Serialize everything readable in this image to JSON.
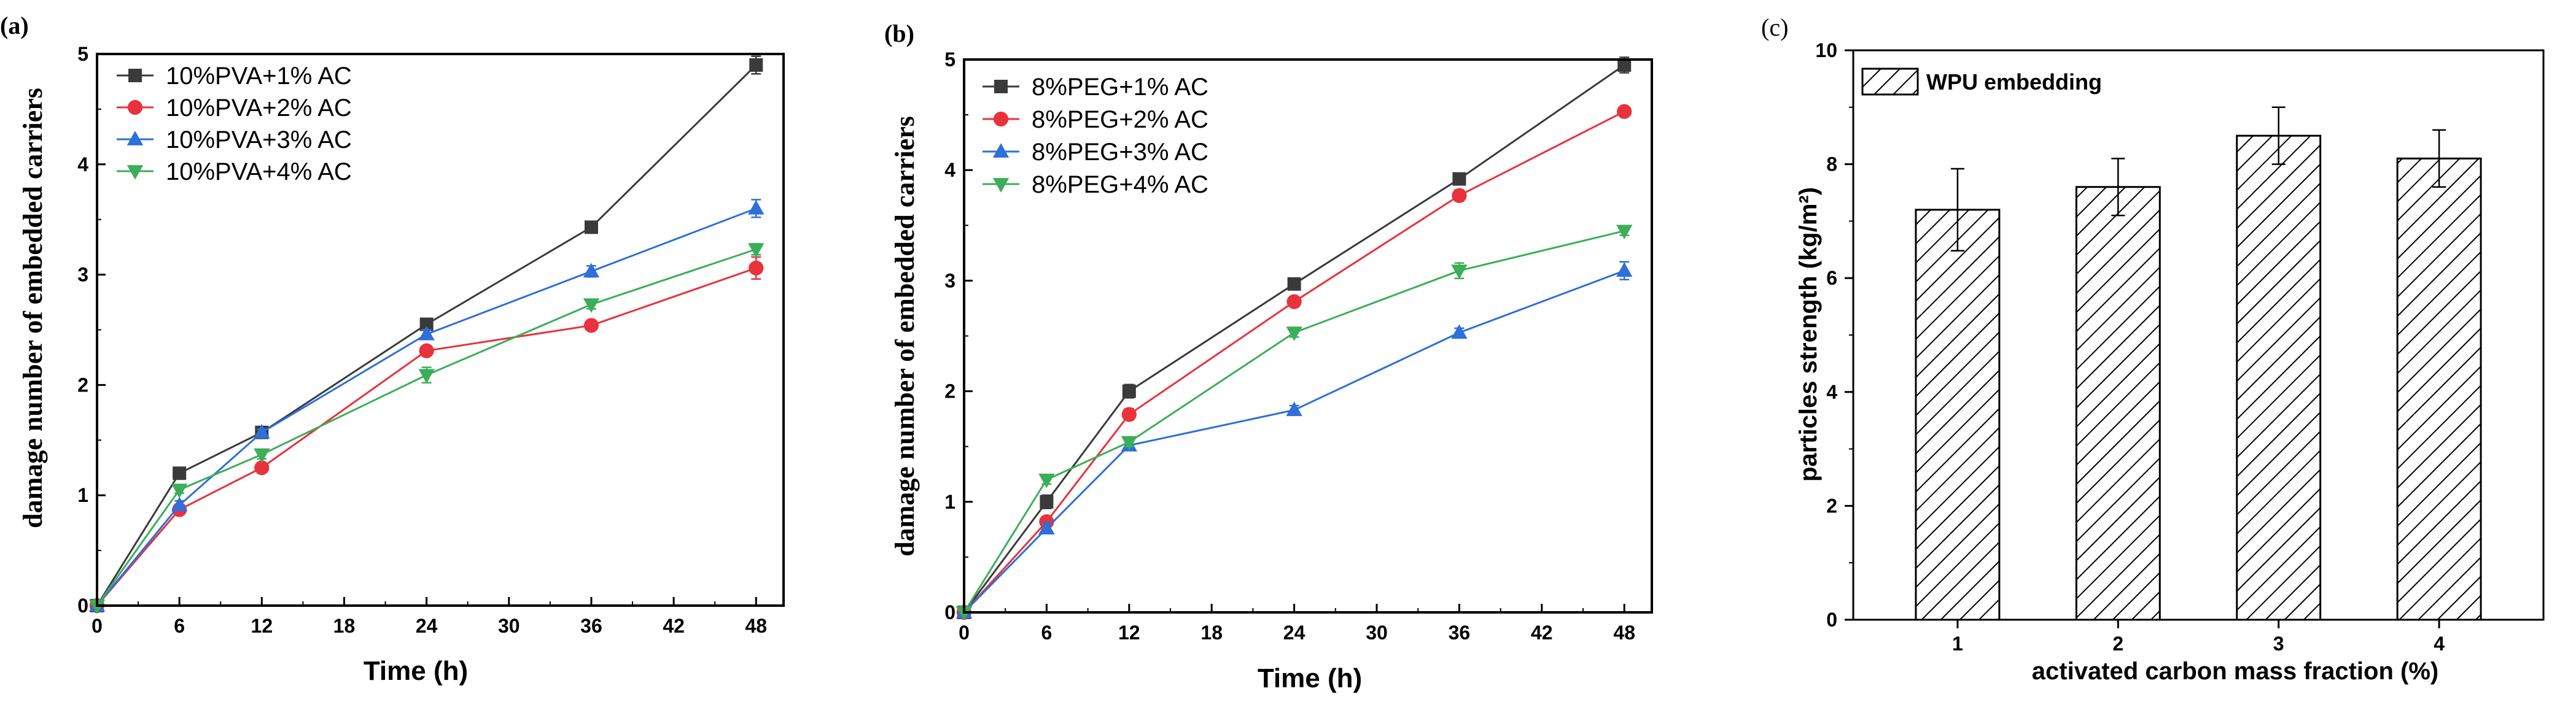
{
  "chart_data": [
    {
      "panel_label": "(a)",
      "type": "line",
      "xlabel": "Time (h)",
      "ylabel": "damage number of embedded carriers",
      "xlim": [
        0,
        50
      ],
      "ylim": [
        0,
        5
      ],
      "xticks": [
        0,
        6,
        12,
        18,
        24,
        30,
        36,
        42,
        48
      ],
      "yticks": [
        0,
        1,
        2,
        3,
        4,
        5
      ],
      "grid": false,
      "legend_position": "top-left",
      "x": [
        0,
        6,
        12,
        24,
        36,
        48
      ],
      "series": [
        {
          "name": "10%PVA+1% AC",
          "color": "#3a3a3a",
          "marker": "square",
          "values": [
            0,
            1.2,
            1.57,
            2.55,
            3.43,
            4.9
          ],
          "errors": [
            0,
            0.03,
            0.03,
            0.04,
            0.04,
            0.08
          ]
        },
        {
          "name": "10%PVA+2% AC",
          "color": "#e8323c",
          "marker": "circle",
          "values": [
            0,
            0.87,
            1.25,
            2.31,
            2.54,
            3.06
          ],
          "errors": [
            0,
            0.03,
            0.04,
            0.04,
            0.04,
            0.1
          ]
        },
        {
          "name": "10%PVA+3% AC",
          "color": "#2e6fd8",
          "marker": "triangle-up",
          "values": [
            0,
            0.91,
            1.57,
            2.46,
            3.03,
            3.6
          ],
          "errors": [
            0,
            0.04,
            0.03,
            0.04,
            0.05,
            0.08
          ]
        },
        {
          "name": "10%PVA+4% AC",
          "color": "#3cae5a",
          "marker": "triangle-down",
          "values": [
            0,
            1.05,
            1.37,
            2.09,
            2.73,
            3.23
          ],
          "errors": [
            0,
            0.03,
            0.04,
            0.07,
            0.04,
            0.05
          ]
        }
      ]
    },
    {
      "panel_label": "(b)",
      "type": "line",
      "xlabel": "Time (h)",
      "ylabel": "damage number of embedded carriers",
      "xlim": [
        0,
        50
      ],
      "ylim": [
        0,
        5
      ],
      "xticks": [
        0,
        6,
        12,
        18,
        24,
        30,
        36,
        42,
        48
      ],
      "yticks": [
        0,
        1,
        2,
        3,
        4,
        5
      ],
      "grid": false,
      "legend_position": "top-left",
      "x": [
        0,
        6,
        12,
        24,
        36,
        48
      ],
      "series": [
        {
          "name": "8%PEG+1% AC",
          "color": "#3a3a3a",
          "marker": "square",
          "values": [
            0,
            1.0,
            2.0,
            2.97,
            3.92,
            4.95
          ],
          "errors": [
            0,
            0.06,
            0.06,
            0.04,
            0.04,
            0.07
          ]
        },
        {
          "name": "8%PEG+2% AC",
          "color": "#e8323c",
          "marker": "circle",
          "values": [
            0,
            0.82,
            1.79,
            2.81,
            3.77,
            4.53
          ],
          "errors": [
            0,
            0.04,
            0.05,
            0.04,
            0.05,
            0.04
          ]
        },
        {
          "name": "8%PEG+3% AC",
          "color": "#2e6fd8",
          "marker": "triangle-up",
          "values": [
            0,
            0.76,
            1.51,
            1.83,
            2.53,
            3.09
          ],
          "errors": [
            0,
            0.04,
            0.04,
            0.04,
            0.04,
            0.08
          ]
        },
        {
          "name": "8%PEG+4% AC",
          "color": "#3cae5a",
          "marker": "triangle-down",
          "values": [
            0,
            1.2,
            1.54,
            2.53,
            3.09,
            3.45
          ],
          "errors": [
            0,
            0.04,
            0.04,
            0.04,
            0.07,
            0.04
          ]
        }
      ]
    },
    {
      "panel_label": "(c)",
      "type": "bar",
      "xlabel": "activated carbon mass fraction (%)",
      "ylabel": "particles strength (kg/m²)",
      "categories": [
        "1",
        "2",
        "3",
        "4"
      ],
      "ylim": [
        0,
        10
      ],
      "yticks": [
        0,
        2,
        4,
        6,
        8,
        10
      ],
      "grid": false,
      "legend_position": "top-left",
      "series": [
        {
          "name": "WPU embedding",
          "pattern": "diagonal-hatch",
          "values": [
            7.2,
            7.6,
            8.5,
            8.1
          ],
          "errors": [
            0.72,
            0.5,
            0.5,
            0.5
          ]
        }
      ]
    }
  ]
}
